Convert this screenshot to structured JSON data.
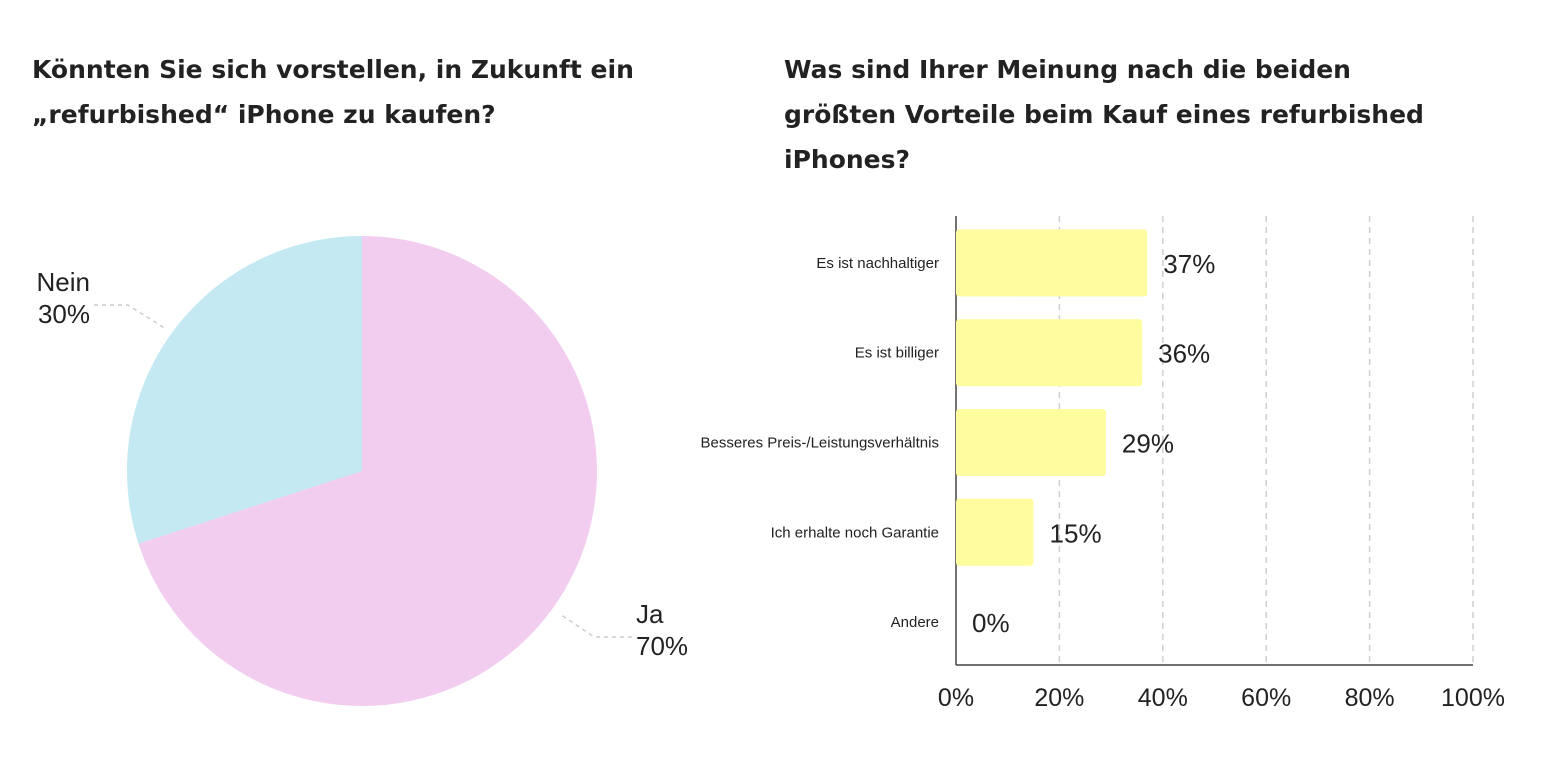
{
  "chart_data": [
    {
      "type": "pie",
      "title": "Könnten Sie sich vorstellen, in Zukunft ein „refurbished“ iPhone zu kaufen?",
      "slices": [
        {
          "label": "Ja",
          "value": 70,
          "value_label": "70%",
          "color": "#f2cdf0"
        },
        {
          "label": "Nein",
          "value": 30,
          "value_label": "30%",
          "color": "#c4e9f2"
        }
      ]
    },
    {
      "type": "bar",
      "orientation": "horizontal",
      "title": "Was sind Ihrer Meinung nach die beiden größten Vorteile beim Kauf eines refurbished iPhones?",
      "categories": [
        "Es ist nachhaltiger",
        "Es ist billiger",
        "Besseres Preis-/Leistungsverhältnis",
        "Ich erhalte noch Garantie",
        "Andere"
      ],
      "values": [
        37,
        36,
        29,
        15,
        0
      ],
      "value_labels": [
        "37%",
        "36%",
        "29%",
        "15%",
        "0%"
      ],
      "xlim": [
        0,
        100
      ],
      "x_ticks": [
        "0%",
        "20%",
        "40%",
        "60%",
        "80%",
        "100%"
      ],
      "grid": true,
      "bar_color": "#fffca0"
    }
  ]
}
